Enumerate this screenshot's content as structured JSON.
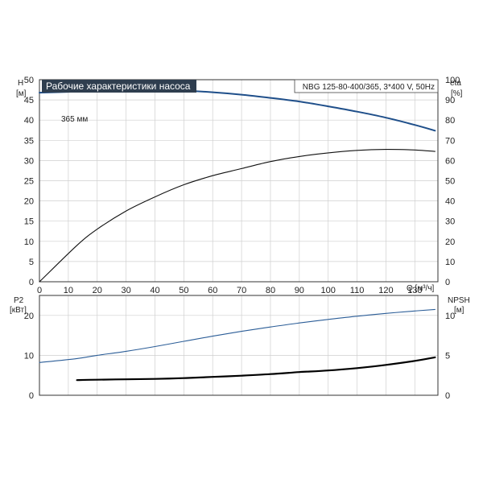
{
  "title": "Рабочие характеристики насоса",
  "model": "NBG 125-80-400/365, 3*400 V, 50Hz",
  "colors": {
    "head": "#1f4f8a",
    "eta": "#111111",
    "p2": "#2b5d97",
    "npsh": "#000000",
    "title_bg": "#2f3e4f"
  },
  "chart_data": [
    {
      "type": "line",
      "x_label": "Q [м³/ч]",
      "y_left_label": [
        "H",
        "[м]"
      ],
      "y_right_label": [
        "eta",
        "[%]"
      ],
      "xlim": [
        0,
        138
      ],
      "x_ticks": [
        0,
        10,
        20,
        30,
        40,
        50,
        60,
        70,
        80,
        90,
        100,
        110,
        120,
        130
      ],
      "ylim_left": [
        0,
        50
      ],
      "y_left_ticks": [
        0,
        5,
        10,
        15,
        20,
        25,
        30,
        35,
        40,
        45,
        50
      ],
      "ylim_right": [
        0,
        100
      ],
      "y_right_ticks": [
        0,
        10,
        20,
        30,
        40,
        50,
        60,
        70,
        80,
        90,
        100
      ],
      "grid": true,
      "series": [
        {
          "name": "365 мм",
          "axis": "left",
          "x": [
            0,
            10,
            20,
            30,
            40,
            50,
            60,
            70,
            80,
            90,
            100,
            110,
            120,
            130,
            137
          ],
          "y": [
            46.8,
            47.0,
            47.3,
            47.5,
            47.5,
            47.3,
            46.9,
            46.3,
            45.5,
            44.6,
            43.4,
            42.1,
            40.6,
            38.8,
            37.4
          ]
        },
        {
          "axis": "right",
          "x": [
            0,
            13,
            20,
            30,
            40,
            50,
            60,
            70,
            80,
            90,
            100,
            110,
            120,
            130,
            137
          ],
          "y": [
            0,
            18,
            26,
            35,
            42,
            48,
            52.5,
            56,
            59.5,
            62,
            63.8,
            65,
            65.5,
            65.2,
            64.5
          ]
        }
      ]
    },
    {
      "type": "line",
      "y_left_label": [
        "P2",
        "[кВт]"
      ],
      "y_right_label": [
        "NPSH",
        "[м]"
      ],
      "xlim": [
        0,
        138
      ],
      "ylim_left": [
        0,
        25
      ],
      "y_left_ticks": [
        0,
        10,
        20
      ],
      "ylim_right": [
        0,
        12.5
      ],
      "y_right_ticks": [
        0,
        5,
        10
      ],
      "grid": true,
      "series": [
        {
          "axis": "left",
          "x": [
            0,
            13,
            20,
            30,
            40,
            50,
            60,
            70,
            80,
            90,
            100,
            110,
            120,
            130,
            137
          ],
          "y": [
            8.2,
            9.2,
            10.0,
            11.0,
            12.2,
            13.5,
            14.8,
            16.0,
            17.1,
            18.1,
            19.0,
            19.8,
            20.5,
            21.1,
            21.5
          ]
        },
        {
          "axis": "right",
          "x": [
            13,
            20,
            30,
            40,
            50,
            60,
            70,
            80,
            90,
            100,
            110,
            120,
            130,
            137
          ],
          "y": [
            1.9,
            1.95,
            2.0,
            2.05,
            2.15,
            2.3,
            2.45,
            2.65,
            2.9,
            3.1,
            3.4,
            3.8,
            4.3,
            4.75
          ]
        }
      ]
    }
  ]
}
